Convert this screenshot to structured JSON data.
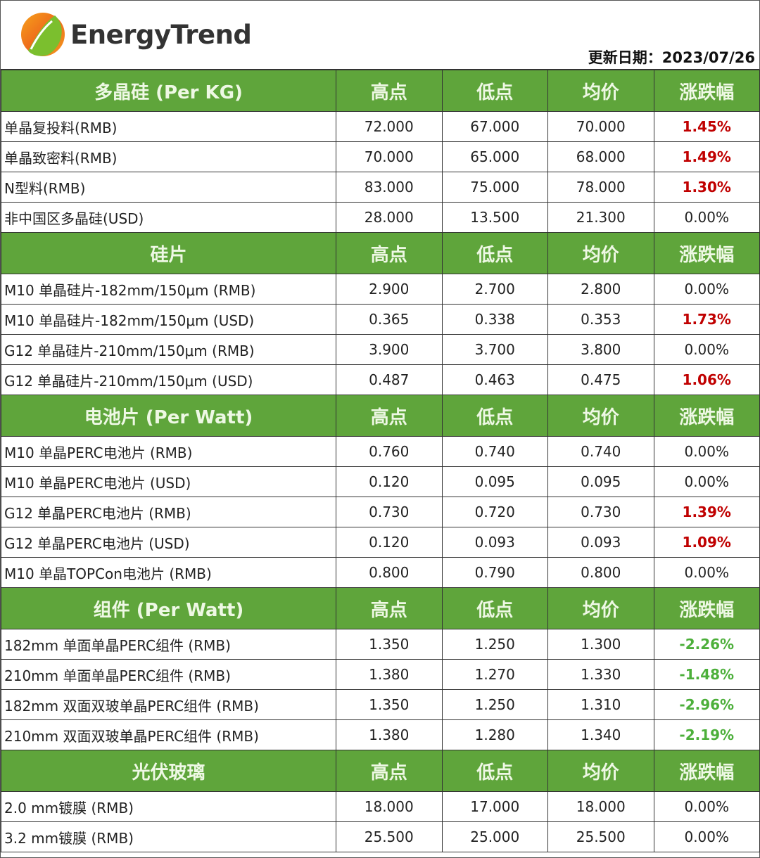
{
  "brand": {
    "name": "EnergyTrend"
  },
  "update": {
    "label": "更新日期：",
    "date": "2023/07/26"
  },
  "colors": {
    "header_green": "#5fa53b",
    "rise_red": "#c00000",
    "fall_green": "#4caf3a"
  },
  "columns": [
    "高点",
    "低点",
    "均价",
    "涨跌幅"
  ],
  "sections": [
    {
      "title": "多晶硅 (Per KG)",
      "rows": [
        {
          "name": "单晶复投料(RMB)",
          "high": "72.000",
          "low": "67.000",
          "avg": "70.000",
          "change": "1.45%",
          "trend": "up"
        },
        {
          "name": "单晶致密料(RMB)",
          "high": "70.000",
          "low": "65.000",
          "avg": "68.000",
          "change": "1.49%",
          "trend": "up"
        },
        {
          "name": "N型料(RMB)",
          "high": "83.000",
          "low": "75.000",
          "avg": "78.000",
          "change": "1.30%",
          "trend": "up"
        },
        {
          "name": "非中国区多晶硅(USD)",
          "high": "28.000",
          "low": "13.500",
          "avg": "21.300",
          "change": "0.00%",
          "trend": "flat"
        }
      ]
    },
    {
      "title": "硅片",
      "rows": [
        {
          "name": "M10 单晶硅片-182mm/150μm (RMB)",
          "high": "2.900",
          "low": "2.700",
          "avg": "2.800",
          "change": "0.00%",
          "trend": "flat"
        },
        {
          "name": "M10 单晶硅片-182mm/150μm (USD)",
          "high": "0.365",
          "low": "0.338",
          "avg": "0.353",
          "change": "1.73%",
          "trend": "up"
        },
        {
          "name": "G12 单晶硅片-210mm/150μm  (RMB)",
          "high": "3.900",
          "low": "3.700",
          "avg": "3.800",
          "change": "0.00%",
          "trend": "flat"
        },
        {
          "name": "G12 单晶硅片-210mm/150μm  (USD)",
          "high": "0.487",
          "low": "0.463",
          "avg": "0.475",
          "change": "1.06%",
          "trend": "up"
        }
      ]
    },
    {
      "title": "电池片 (Per Watt)",
      "rows": [
        {
          "name": "M10 单晶PERC电池片 (RMB)",
          "high": "0.760",
          "low": "0.740",
          "avg": "0.740",
          "change": "0.00%",
          "trend": "flat"
        },
        {
          "name": "M10 单晶PERC电池片 (USD)",
          "high": "0.120",
          "low": "0.095",
          "avg": "0.095",
          "change": "0.00%",
          "trend": "flat"
        },
        {
          "name": "G12 单晶PERC电池片 (RMB)",
          "high": "0.730",
          "low": "0.720",
          "avg": "0.730",
          "change": "1.39%",
          "trend": "up"
        },
        {
          "name": "G12 单晶PERC电池片 (USD)",
          "high": "0.120",
          "low": "0.093",
          "avg": "0.093",
          "change": "1.09%",
          "trend": "up"
        },
        {
          "name": "M10 单晶TOPCon电池片 (RMB)",
          "high": "0.800",
          "low": "0.790",
          "avg": "0.800",
          "change": "0.00%",
          "trend": "flat"
        }
      ]
    },
    {
      "title": "组件 (Per Watt)",
      "rows": [
        {
          "name": "182mm 单面单晶PERC组件 (RMB)",
          "high": "1.350",
          "low": "1.250",
          "avg": "1.300",
          "change": "-2.26%",
          "trend": "down"
        },
        {
          "name": "210mm 单面单晶PERC组件 (RMB)",
          "high": "1.380",
          "low": "1.270",
          "avg": "1.330",
          "change": "-1.48%",
          "trend": "down"
        },
        {
          "name": "182mm 双面双玻单晶PERC组件 (RMB)",
          "high": "1.350",
          "low": "1.250",
          "avg": "1.310",
          "change": "-2.96%",
          "trend": "down"
        },
        {
          "name": "210mm 双面双玻单晶PERC组件 (RMB)",
          "high": "1.380",
          "low": "1.280",
          "avg": "1.340",
          "change": "-2.19%",
          "trend": "down"
        }
      ]
    },
    {
      "title": "光伏玻璃",
      "rows": [
        {
          "name": "2.0 mm镀膜 (RMB)",
          "high": "18.000",
          "low": "17.000",
          "avg": "18.000",
          "change": "0.00%",
          "trend": "flat"
        },
        {
          "name": "3.2 mm镀膜 (RMB)",
          "high": "25.500",
          "low": "25.000",
          "avg": "25.500",
          "change": "0.00%",
          "trend": "flat"
        }
      ]
    }
  ]
}
